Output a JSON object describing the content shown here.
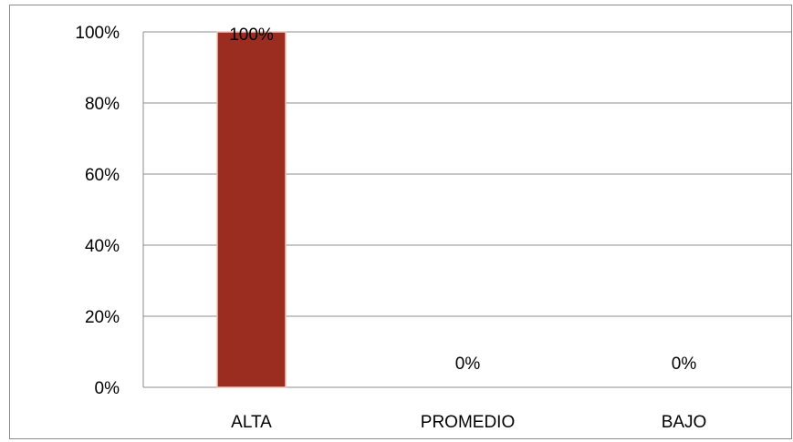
{
  "chart_data": {
    "type": "bar",
    "title": "",
    "xlabel": "",
    "ylabel": "",
    "categories": [
      "ALTA",
      "PROMEDIO",
      "BAJO"
    ],
    "values": [
      100,
      0,
      0
    ],
    "data_labels": [
      "100%",
      "0%",
      "0%"
    ],
    "ylim": [
      0,
      100
    ],
    "y_ticks": [
      0,
      20,
      40,
      60,
      80,
      100
    ],
    "y_tick_labels": [
      "0%",
      "20%",
      "40%",
      "60%",
      "80%",
      "100%"
    ],
    "grid": true,
    "legend": "none",
    "bar_color": "#9b2d20",
    "bar_edge_color": "#f2c2b8",
    "grid_color": "#8c8c8c"
  }
}
